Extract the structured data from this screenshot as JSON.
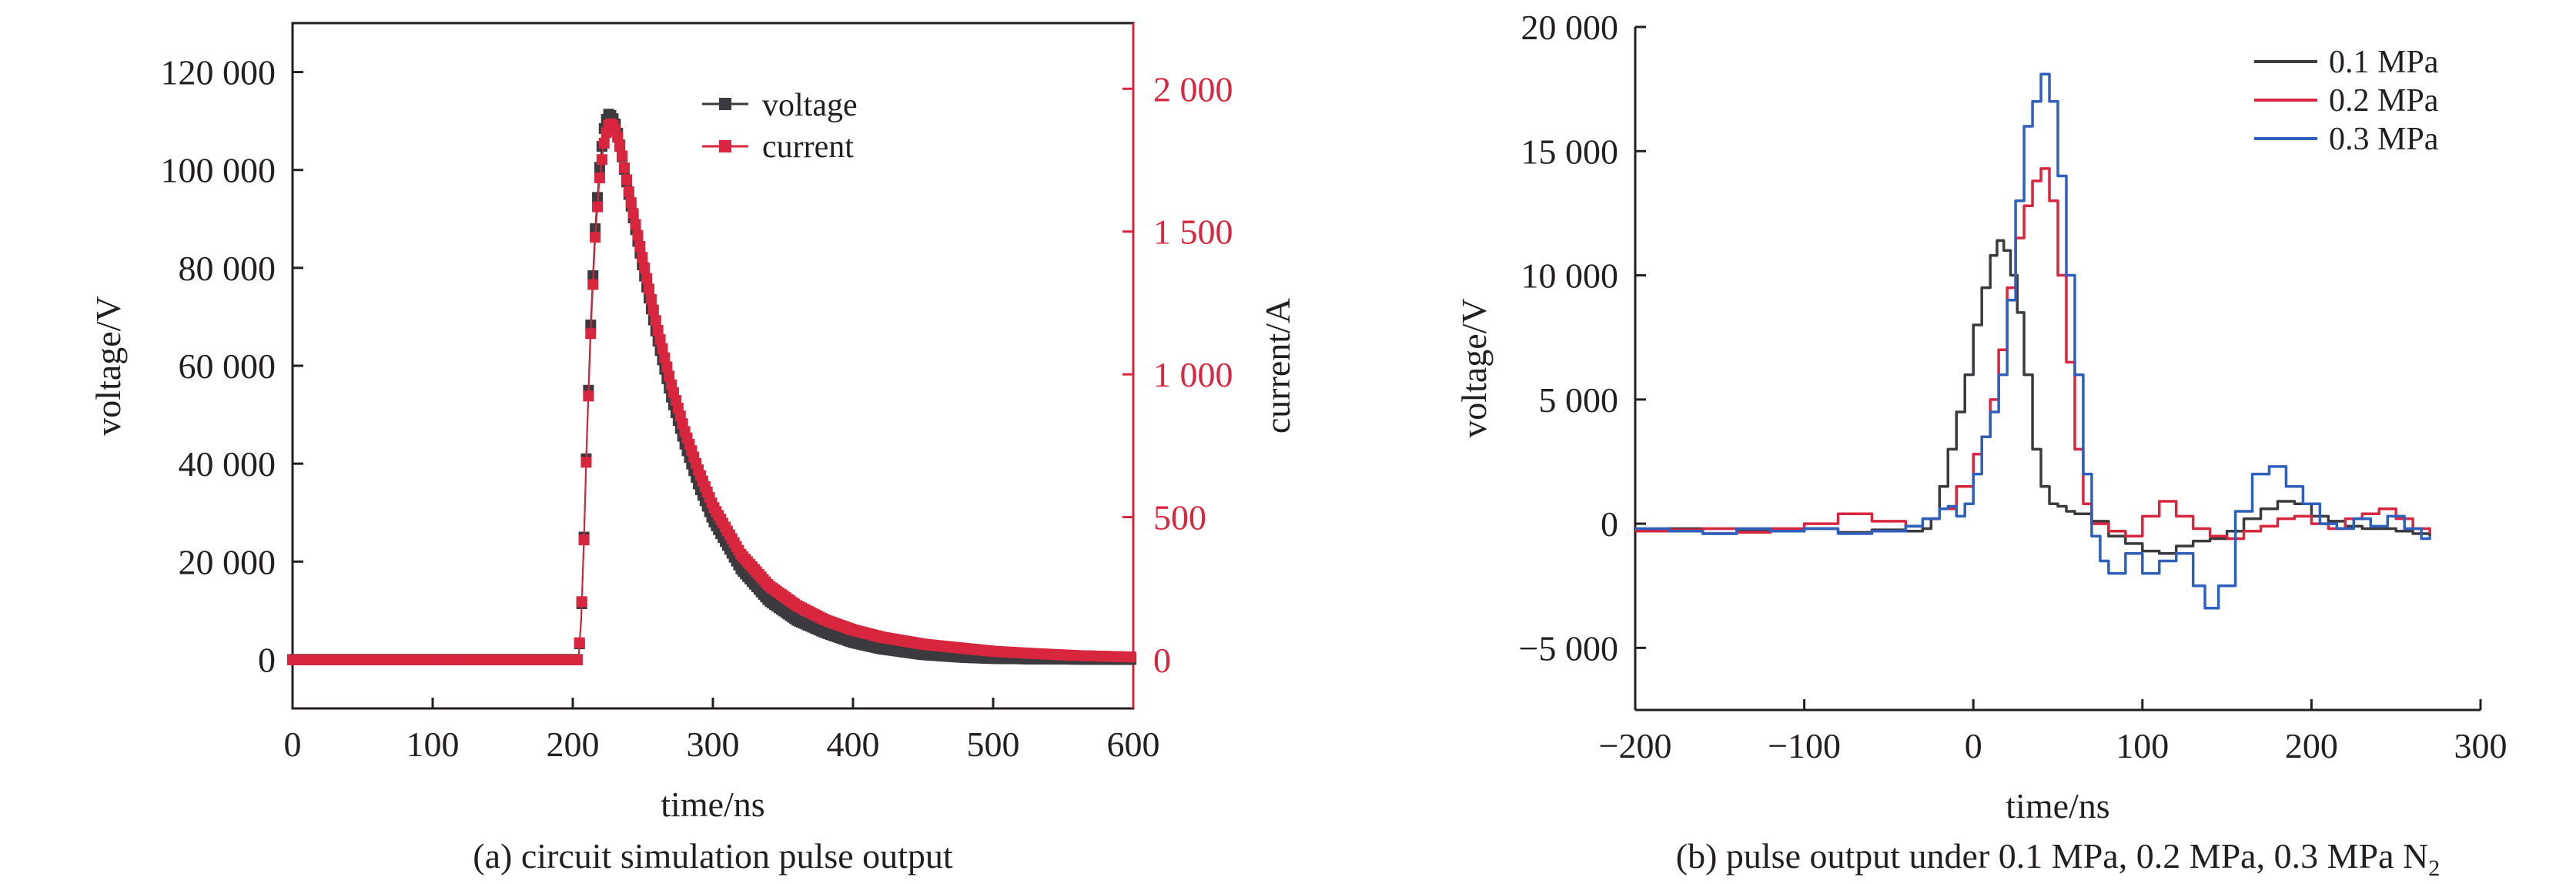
{
  "figure": {
    "panel_a_caption": "(a) circuit simulation pulse output",
    "panel_b_caption_main": "(b) pulse output under 0.1 MPa, 0.2 MPa, 0.3 MPa N",
    "panel_b_caption_sub": "2"
  },
  "colors": {
    "axis": "#231f20",
    "dark": "#3a3a3f",
    "red": "#d7263d",
    "blue": "#2f5fbd"
  },
  "chart_data": [
    {
      "type": "line",
      "title": "",
      "xlabel": "time/ns",
      "ylabel": "voltage/V",
      "y2label": "current/A",
      "xlim": [
        0,
        600
      ],
      "ylim": [
        -10000,
        130000
      ],
      "y2lim": [
        -170,
        2230
      ],
      "xticks": [
        0,
        100,
        200,
        300,
        400,
        500,
        600
      ],
      "xtick_labels": [
        "0",
        "100",
        "200",
        "300",
        "400",
        "500",
        "600"
      ],
      "yticks": [
        0,
        20000,
        40000,
        60000,
        80000,
        100000,
        120000
      ],
      "ytick_labels": [
        "0",
        "20 000",
        "40 000",
        "60 000",
        "80 000",
        "100 000",
        "120 000"
      ],
      "y2ticks": [
        0,
        500,
        1000,
        1500,
        2000
      ],
      "y2tick_labels": [
        "0",
        "500",
        "1 000",
        "1 500",
        "2 000"
      ],
      "legend_position": "top-center",
      "marker": "square",
      "series": [
        {
          "name": "voltage",
          "axis": "left",
          "color": "#3a3a3f",
          "x": [
            0,
            100,
            200,
            204,
            206,
            208,
            210,
            213,
            216,
            219,
            222,
            225,
            228,
            231,
            235,
            240,
            250,
            260,
            270,
            280,
            290,
            300,
            320,
            340,
            360,
            380,
            400,
            420,
            450,
            480,
            500,
            530,
            560,
            600
          ],
          "y": [
            0,
            0,
            0,
            0,
            8000,
            25000,
            45000,
            70000,
            88000,
            100000,
            108000,
            111500,
            111000,
            109000,
            103000,
            95000,
            80000,
            66000,
            54000,
            44000,
            35500,
            28500,
            18500,
            12000,
            8000,
            5500,
            3500,
            2200,
            1000,
            400,
            200,
            100,
            50,
            0
          ]
        },
        {
          "name": "current",
          "axis": "right",
          "color": "#d7263d",
          "x": [
            0,
            100,
            200,
            204,
            206,
            208,
            210,
            213,
            216,
            219,
            222,
            225,
            228,
            231,
            235,
            240,
            250,
            260,
            270,
            280,
            290,
            300,
            320,
            340,
            360,
            380,
            400,
            420,
            450,
            480,
            500,
            530,
            560,
            600
          ],
          "y": [
            0,
            0,
            0,
            0,
            150,
            420,
            760,
            1170,
            1480,
            1680,
            1800,
            1870,
            1880,
            1850,
            1770,
            1640,
            1400,
            1170,
            970,
            800,
            660,
            540,
            370,
            260,
            190,
            140,
            105,
            80,
            55,
            40,
            30,
            22,
            15,
            10
          ]
        }
      ]
    },
    {
      "type": "line",
      "title": "",
      "xlabel": "time/ns",
      "ylabel": "voltage/V",
      "xlim": [
        -200,
        300
      ],
      "ylim": [
        -7500,
        20000
      ],
      "xticks": [
        -200,
        -100,
        0,
        100,
        200,
        300
      ],
      "xtick_labels": [
        "−200",
        "−100",
        "0",
        "100",
        "200",
        "300"
      ],
      "yticks": [
        -5000,
        0,
        5000,
        10000,
        15000,
        20000
      ],
      "ytick_labels": [
        "−5 000",
        "0",
        "5 000",
        "10 000",
        "15 000",
        "20 000"
      ],
      "legend_position": "top-right",
      "series": [
        {
          "name": "0.1 MPa",
          "color": "#3a3a3f",
          "x": [
            -200,
            -180,
            -160,
            -140,
            -120,
            -100,
            -80,
            -60,
            -40,
            -30,
            -25,
            -20,
            -15,
            -10,
            -5,
            0,
            5,
            10,
            14,
            18,
            22,
            26,
            30,
            35,
            40,
            45,
            50,
            55,
            60,
            70,
            80,
            90,
            100,
            110,
            120,
            130,
            140,
            150,
            160,
            170,
            180,
            190,
            200,
            210,
            220,
            230,
            240,
            250,
            260,
            270
          ],
          "y": [
            -300,
            -200,
            -400,
            -250,
            -300,
            -200,
            -350,
            -250,
            -300,
            -200,
            200,
            1500,
            3000,
            4500,
            6000,
            8000,
            9500,
            10800,
            11400,
            11000,
            10000,
            8500,
            6000,
            3000,
            1500,
            800,
            700,
            500,
            400,
            100,
            -500,
            -800,
            -1100,
            -1200,
            -900,
            -700,
            -600,
            -300,
            200,
            600,
            900,
            800,
            300,
            100,
            -100,
            -200,
            -200,
            -300,
            -400,
            -500
          ]
        },
        {
          "name": "0.2 MPa",
          "color": "#d7263d",
          "x": [
            -200,
            -180,
            -160,
            -140,
            -120,
            -100,
            -80,
            -60,
            -40,
            -30,
            -20,
            -10,
            0,
            5,
            10,
            15,
            20,
            25,
            30,
            35,
            40,
            45,
            50,
            55,
            60,
            65,
            70,
            80,
            90,
            100,
            110,
            120,
            130,
            140,
            150,
            160,
            170,
            180,
            190,
            200,
            210,
            220,
            230,
            240,
            250,
            260,
            270
          ],
          "y": [
            -300,
            -250,
            -200,
            -350,
            -200,
            0,
            400,
            100,
            -100,
            200,
            600,
            1500,
            2800,
            3500,
            5000,
            7000,
            9500,
            11500,
            12800,
            13800,
            14300,
            13000,
            10000,
            6500,
            3000,
            800,
            0,
            -300,
            -500,
            300,
            900,
            300,
            -200,
            -500,
            -600,
            -300,
            -100,
            200,
            300,
            0,
            -200,
            200,
            400,
            600,
            200,
            -200,
            -400
          ]
        },
        {
          "name": "0.3 MPa",
          "color": "#2f5fbd",
          "x": [
            -200,
            -180,
            -160,
            -140,
            -120,
            -100,
            -80,
            -60,
            -40,
            -30,
            -20,
            -15,
            -10,
            -5,
            0,
            5,
            10,
            15,
            20,
            25,
            30,
            35,
            40,
            45,
            50,
            55,
            60,
            65,
            70,
            75,
            80,
            90,
            100,
            110,
            120,
            130,
            137,
            145,
            155,
            165,
            175,
            185,
            195,
            205,
            215,
            225,
            235,
            245,
            255,
            265,
            270
          ],
          "y": [
            -200,
            -300,
            -400,
            -200,
            -300,
            -200,
            -400,
            -300,
            -100,
            200,
            600,
            700,
            300,
            800,
            2000,
            3500,
            4500,
            6000,
            9000,
            13000,
            16000,
            17000,
            18100,
            17000,
            14000,
            10000,
            6000,
            2000,
            -500,
            -1500,
            -2000,
            -1200,
            -2000,
            -1500,
            -1200,
            -2500,
            -3400,
            -2500,
            500,
            2000,
            2300,
            1500,
            800,
            0,
            -200,
            200,
            -100,
            300,
            -200,
            -600,
            -500
          ]
        }
      ]
    }
  ]
}
